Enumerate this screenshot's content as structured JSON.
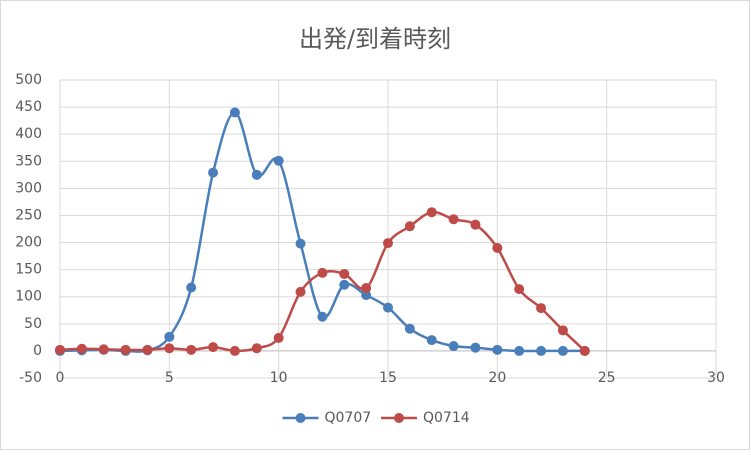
{
  "chart_data": {
    "type": "scatter-smooth",
    "title": "出発/到着時刻",
    "x": [
      0,
      1,
      2,
      3,
      4,
      5,
      6,
      7,
      8,
      9,
      10,
      11,
      12,
      13,
      14,
      15,
      16,
      17,
      18,
      19,
      20,
      21,
      22,
      23,
      24
    ],
    "series": [
      {
        "name": "Q0707",
        "color": "#4a7ebb",
        "values": [
          0,
          1,
          2,
          0,
          1,
          26,
          117,
          329,
          440,
          325,
          351,
          198,
          63,
          122,
          103,
          80,
          41,
          20,
          9,
          6,
          2,
          0,
          0,
          0,
          0
        ]
      },
      {
        "name": "Q0714",
        "color": "#be4b48",
        "values": [
          2,
          4,
          3,
          2,
          2,
          5,
          2,
          7,
          0,
          5,
          24,
          109,
          144,
          142,
          116,
          199,
          230,
          256,
          243,
          233,
          190,
          114,
          79,
          38,
          0
        ]
      }
    ],
    "xlim": [
      0,
      30
    ],
    "xticks": [
      0,
      5,
      10,
      15,
      20,
      25,
      30
    ],
    "ylim": [
      -50,
      500
    ],
    "yticks": [
      -50,
      0,
      50,
      100,
      150,
      200,
      250,
      300,
      350,
      400,
      450,
      500
    ],
    "grid": true,
    "legend": "bottom"
  }
}
